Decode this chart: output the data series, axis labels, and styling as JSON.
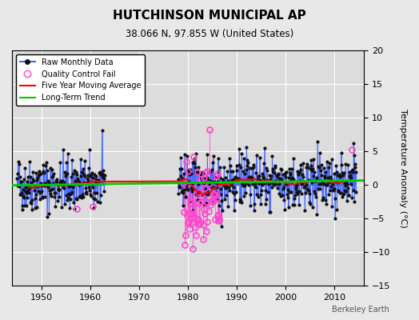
{
  "title": "HUTCHINSON MUNICIPAL AP",
  "subtitle": "38.066 N, 97.855 W (United States)",
  "ylabel": "Temperature Anomaly (°C)",
  "watermark": "Berkeley Earth",
  "xlim": [
    1944,
    2016
  ],
  "ylim": [
    -15,
    20
  ],
  "yticks": [
    -15,
    -10,
    -5,
    0,
    5,
    10,
    15,
    20
  ],
  "xticks": [
    1950,
    1960,
    1970,
    1980,
    1990,
    2000,
    2010
  ],
  "bg_color": "#e8e8e8",
  "plot_bg": "#dcdcdc",
  "grid_color": "#ffffff",
  "raw_line_color": "#4466ff",
  "raw_marker_color": "#111111",
  "qc_marker_color": "#ff44cc",
  "moving_avg_color": "#ff0000",
  "trend_color": "#00cc00",
  "legend_labels": [
    "Raw Monthly Data",
    "Quality Control Fail",
    "Five Year Moving Average",
    "Long-Term Trend"
  ],
  "trend_slope": 0.01,
  "trend_intercept": 0.3
}
